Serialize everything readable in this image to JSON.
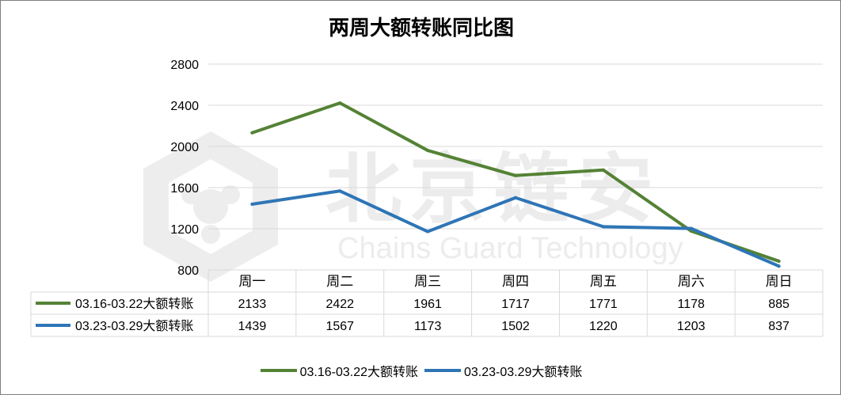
{
  "chart_data": {
    "type": "line",
    "title": "两周大额转账同比图",
    "categories": [
      "周一",
      "周二",
      "周三",
      "周四",
      "周五",
      "周六",
      "周日"
    ],
    "series": [
      {
        "name": "03.16-03.22大额转账",
        "color": "#548235",
        "values": [
          2133,
          2422,
          1961,
          1717,
          1771,
          1178,
          885
        ]
      },
      {
        "name": "03.23-03.29大额转账",
        "color": "#2e75b6",
        "values": [
          1439,
          1567,
          1173,
          1502,
          1220,
          1203,
          837
        ]
      }
    ],
    "yticks": [
      800,
      1200,
      1600,
      2000,
      2400,
      2800
    ],
    "ylim": [
      800,
      2800
    ],
    "grid": true,
    "legend": "bottom",
    "data_table": true
  },
  "watermark": {
    "cn": "北京链安",
    "en": "Chains Guard Technology"
  }
}
